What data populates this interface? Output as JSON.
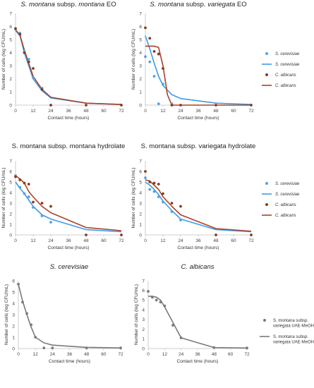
{
  "colors": {
    "sc_point": "#4ea3e6",
    "sc_line": "#3d9be9",
    "ca_point": "#8b3a1c",
    "ca_line": "#a8432a",
    "mix_point": "#7a7a7a",
    "mix_line": "#7a7a7a",
    "axis": "#bfbfbf",
    "text": "#333333"
  },
  "legends": {
    "top": [
      {
        "label": "S. cerevisiae",
        "kind": "point",
        "series": "sc"
      },
      {
        "label": "S. cerevisiae",
        "kind": "line",
        "series": "sc"
      },
      {
        "label": "C. albicans",
        "kind": "point",
        "series": "ca"
      },
      {
        "label": "C. albicans",
        "kind": "line",
        "series": "ca"
      }
    ],
    "middle": [
      {
        "label": "S. cerevisiae",
        "kind": "point",
        "series": "sc"
      },
      {
        "label": "S. cerevisiae",
        "kind": "line",
        "series": "sc"
      },
      {
        "label": "C. albicans",
        "kind": "point",
        "series": "ca"
      },
      {
        "label": "C. albicans",
        "kind": "line",
        "series": "ca"
      }
    ],
    "bottom": [
      {
        "label": "S. montana subsp. variegata UAE-MeOH",
        "kind": "point",
        "series": "mix"
      },
      {
        "label": "S. montana subsp. variegata UAE-MeOH",
        "kind": "line",
        "series": "mix"
      }
    ]
  },
  "chart_data": [
    {
      "type": "scatter",
      "title_parts": [
        {
          "text": "S. montana",
          "italic": true
        },
        {
          "text": " subsp. ",
          "italic": false
        },
        {
          "text": "montana",
          "italic": true
        },
        {
          "text": " EO",
          "italic": false
        }
      ],
      "xlabel": "Contact time (hours)",
      "ylabel": "Number of cells (log CFU/mL)",
      "xlim": [
        0,
        72
      ],
      "ylim": [
        0,
        7
      ],
      "xticks": [
        0,
        12,
        24,
        36,
        48,
        60,
        72
      ],
      "yticks": [
        0,
        1,
        2,
        3,
        4,
        5,
        6,
        7
      ],
      "series": [
        {
          "key": "sc",
          "kind": "points",
          "name": "S. cerevisiae",
          "x": [
            0,
            3,
            6,
            9,
            12,
            18,
            24
          ],
          "y": [
            5.8,
            5.5,
            4.1,
            3.5,
            2.1,
            1.3,
            0
          ]
        },
        {
          "key": "sc",
          "kind": "line",
          "name": "S. cerevisiae",
          "x": [
            0,
            3,
            6,
            9,
            12,
            18,
            24,
            48,
            72
          ],
          "y": [
            5.7,
            5.3,
            4.0,
            3.0,
            2.0,
            1.1,
            0.55,
            0.15,
            0.05
          ]
        },
        {
          "key": "ca",
          "kind": "points",
          "name": "C. albicans",
          "x": [
            0,
            3,
            6,
            9,
            12,
            18,
            24,
            48,
            72
          ],
          "y": [
            5.85,
            5.4,
            4.0,
            3.3,
            2.8,
            1.2,
            0,
            0,
            0
          ]
        },
        {
          "key": "ca",
          "kind": "line",
          "name": "C. albicans",
          "x": [
            0,
            3,
            6,
            9,
            12,
            18,
            24,
            48,
            72
          ],
          "y": [
            5.75,
            5.35,
            4.2,
            3.2,
            2.2,
            1.2,
            0.6,
            0.15,
            0.05
          ]
        }
      ]
    },
    {
      "type": "scatter",
      "title_parts": [
        {
          "text": "S. montana",
          "italic": true
        },
        {
          "text": " subsp. ",
          "italic": false
        },
        {
          "text": "variegata",
          "italic": true
        },
        {
          "text": " EO",
          "italic": false
        }
      ],
      "xlabel": "Contact time (hours)",
      "ylabel": "Number of cells (log CFU/mL)",
      "xlim": [
        0,
        72
      ],
      "ylim": [
        0,
        7
      ],
      "xticks": [
        0,
        12,
        24,
        36,
        48,
        60,
        72
      ],
      "yticks": [
        0,
        1,
        2,
        3,
        4,
        5,
        6,
        7
      ],
      "series": [
        {
          "key": "sc",
          "kind": "points",
          "name": "S. cerevisiae",
          "x": [
            0,
            3,
            6,
            9,
            12,
            18
          ],
          "y": [
            3.7,
            3.3,
            2.2,
            0.1,
            1.6,
            0.1
          ]
        },
        {
          "key": "sc",
          "kind": "line",
          "name": "S. cerevisiae",
          "x": [
            0,
            3,
            6,
            9,
            12,
            18,
            24,
            48,
            72
          ],
          "y": [
            5.3,
            4.3,
            3.2,
            2.2,
            1.5,
            0.8,
            0.5,
            0.15,
            0.05
          ]
        },
        {
          "key": "ca",
          "kind": "points",
          "name": "C. albicans",
          "x": [
            0,
            3,
            6,
            9,
            12,
            18,
            24,
            48,
            72
          ],
          "y": [
            5.9,
            5.1,
            4.1,
            3.9,
            2.8,
            0,
            0,
            0,
            0
          ]
        },
        {
          "key": "ca",
          "kind": "line",
          "name": "C. albicans",
          "x": [
            0,
            3,
            6,
            9,
            12,
            15,
            18,
            24,
            48,
            72
          ],
          "y": [
            4.5,
            4.5,
            4.5,
            4.4,
            3.0,
            0.8,
            0,
            0,
            0,
            0
          ]
        }
      ]
    },
    {
      "type": "scatter",
      "title_parts": [
        {
          "text": "S. montana subsp. montana hydrolate",
          "italic": false
        }
      ],
      "xlabel": "Contact time (hours)",
      "ylabel": "Number of cells (log CFU/mL)",
      "xlim": [
        0,
        72
      ],
      "ylim": [
        0,
        7
      ],
      "xticks": [
        0,
        12,
        24,
        36,
        48,
        60,
        72
      ],
      "yticks": [
        0,
        1,
        2,
        3,
        4,
        5,
        6,
        7
      ],
      "series": [
        {
          "key": "sc",
          "kind": "points",
          "name": "S. cerevisiae",
          "x": [
            0,
            3,
            6,
            9,
            12,
            18,
            24
          ],
          "y": [
            5.6,
            4.5,
            3.9,
            3.6,
            2.6,
            1.8,
            1.2
          ]
        },
        {
          "key": "sc",
          "kind": "line",
          "name": "S. cerevisiae",
          "x": [
            0,
            3,
            6,
            9,
            12,
            18,
            24,
            48,
            72
          ],
          "y": [
            5.0,
            4.4,
            3.9,
            3.3,
            2.7,
            1.9,
            1.5,
            0.5,
            0.3
          ]
        },
        {
          "key": "ca",
          "kind": "points",
          "name": "C. albicans",
          "x": [
            0,
            3,
            6,
            9,
            12,
            18,
            24,
            48,
            72
          ],
          "y": [
            5.5,
            5.2,
            4.9,
            4.8,
            3.1,
            3.0,
            2.7,
            0,
            0
          ]
        },
        {
          "key": "ca",
          "kind": "line",
          "name": "C. albicans",
          "x": [
            0,
            3,
            6,
            9,
            12,
            18,
            24,
            48,
            72
          ],
          "y": [
            5.6,
            5.3,
            4.9,
            4.1,
            3.6,
            2.7,
            2.1,
            0.7,
            0.4
          ]
        }
      ]
    },
    {
      "type": "scatter",
      "title_parts": [
        {
          "text": "S. montana subsp. variegata hydrolate",
          "italic": false
        }
      ],
      "xlabel": "Contact time (hours)",
      "ylabel": "Number of cells (log CFU/mL)",
      "xlim": [
        0,
        72
      ],
      "ylim": [
        0,
        7
      ],
      "xticks": [
        0,
        12,
        24,
        36,
        48,
        60,
        72
      ],
      "yticks": [
        0,
        1,
        2,
        3,
        4,
        5,
        6,
        7
      ],
      "series": [
        {
          "key": "sc",
          "kind": "points",
          "name": "S. cerevisiae",
          "x": [
            0,
            3,
            6,
            9,
            12,
            18,
            24
          ],
          "y": [
            5.4,
            4.3,
            4.1,
            3.6,
            3.1,
            2.2,
            1.4
          ]
        },
        {
          "key": "sc",
          "kind": "line",
          "name": "S. cerevisiae",
          "x": [
            0,
            3,
            6,
            9,
            12,
            18,
            24,
            48,
            72
          ],
          "y": [
            5.0,
            4.7,
            4.3,
            3.8,
            3.2,
            2.3,
            1.5,
            0.5,
            0.3
          ]
        },
        {
          "key": "ca",
          "kind": "points",
          "name": "C. albicans",
          "x": [
            0,
            3,
            6,
            9,
            12,
            18,
            24,
            48,
            72
          ],
          "y": [
            6.0,
            5.0,
            4.9,
            4.8,
            3.9,
            3.0,
            2.7,
            0,
            0
          ]
        },
        {
          "key": "ca",
          "kind": "line",
          "name": "C. albicans",
          "x": [
            0,
            3,
            6,
            9,
            12,
            18,
            24,
            48,
            72
          ],
          "y": [
            5.2,
            5.1,
            4.7,
            4.3,
            3.6,
            2.7,
            1.9,
            0.6,
            0.35
          ]
        }
      ]
    },
    {
      "type": "scatter",
      "title_parts": [
        {
          "text": "S. cerevisiae",
          "italic": true
        }
      ],
      "xlabel": "Contact time (hours)",
      "ylabel": "Number of cells (log CFU/mL)",
      "xlim": [
        0,
        72
      ],
      "ylim": [
        0,
        6
      ],
      "xticks": [
        0,
        12,
        24,
        36,
        48,
        60,
        72
      ],
      "yticks": [
        0,
        1,
        2,
        3,
        4,
        5,
        6
      ],
      "series": [
        {
          "key": "mix",
          "kind": "points",
          "name": "S. montana subsp. variegata UAE-MeOH",
          "x": [
            0,
            3,
            6,
            9,
            12,
            18,
            24,
            48,
            72
          ],
          "y": [
            5.7,
            4.1,
            3.1,
            2.1,
            1.0,
            0.05,
            0.05,
            0.05,
            0.05
          ]
        },
        {
          "key": "mix",
          "kind": "line",
          "name": "S. montana subsp. variegata UAE-MeOH",
          "x": [
            0,
            3,
            6,
            9,
            12,
            18,
            24,
            48,
            72
          ],
          "y": [
            5.7,
            4.2,
            3.0,
            1.9,
            1.0,
            0.5,
            0.3,
            0.1,
            0.05
          ]
        }
      ]
    },
    {
      "type": "scatter",
      "title_parts": [
        {
          "text": "C. albicans",
          "italic": true
        }
      ],
      "xlabel": "Contact time (hours)",
      "ylabel": "Number of cells (log CFU/mL)",
      "xlim": [
        0,
        72
      ],
      "ylim": [
        0,
        7
      ],
      "xticks": [
        0,
        12,
        24,
        36,
        48,
        60,
        72
      ],
      "yticks": [
        0,
        1,
        2,
        3,
        4,
        5,
        6,
        7
      ],
      "series": [
        {
          "key": "mix",
          "kind": "points",
          "name": "S. montana subsp. variegata UAE-MeOH",
          "x": [
            0,
            3,
            6,
            9,
            12,
            18,
            24,
            48,
            72
          ],
          "y": [
            5.9,
            5.3,
            5.0,
            4.8,
            4.4,
            2.4,
            1.1,
            0.1,
            0.05
          ]
        },
        {
          "key": "mix",
          "kind": "line",
          "name": "S. montana subsp. variegata UAE-MeOH",
          "x": [
            0,
            3,
            6,
            9,
            12,
            18,
            24,
            48,
            72
          ],
          "y": [
            5.4,
            5.4,
            5.3,
            5.0,
            4.3,
            2.7,
            1.1,
            0.1,
            0.05
          ]
        }
      ]
    }
  ]
}
